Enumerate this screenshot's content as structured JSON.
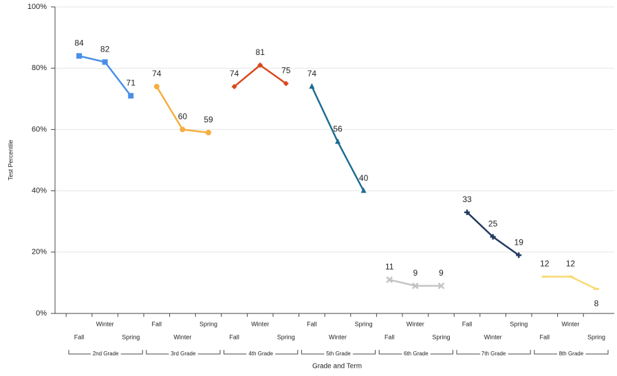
{
  "chart_data": {
    "type": "line",
    "y_label": "Test Percentile",
    "x_label": "Grade and Term",
    "ylim": [
      0,
      100
    ],
    "yticks": [
      {
        "value": 0,
        "label": "0%"
      },
      {
        "value": 20,
        "label": "20%"
      },
      {
        "value": 40,
        "label": "40%"
      },
      {
        "value": 60,
        "label": "60%"
      },
      {
        "value": 80,
        "label": "80%"
      },
      {
        "value": 100,
        "label": "100%"
      }
    ],
    "grid": true,
    "series": [
      {
        "name": "2nd Grade",
        "color": "#4a8fe7",
        "marker": "square",
        "categories": [
          "Fall",
          "Winter",
          "Spring"
        ],
        "values": [
          84,
          82,
          71
        ]
      },
      {
        "name": "3rd Grade",
        "color": "#f5ae3e",
        "marker": "circle",
        "categories": [
          "Fall",
          "Winter",
          "Spring"
        ],
        "values": [
          74,
          60,
          59
        ]
      },
      {
        "name": "4th Grade",
        "color": "#d9481c",
        "marker": "diamond",
        "categories": [
          "Fall",
          "Winter",
          "Spring"
        ],
        "values": [
          74,
          81,
          75
        ]
      },
      {
        "name": "5th Grade",
        "color": "#1d6c92",
        "marker": "triangle",
        "categories": [
          "Fall",
          "Winter",
          "Spring"
        ],
        "values": [
          74,
          56,
          40
        ]
      },
      {
        "name": "6th Grade",
        "color": "#c4c4c4",
        "marker": "cross",
        "categories": [
          "Fall",
          "Winter",
          "Spring"
        ],
        "values": [
          11,
          9,
          9
        ]
      },
      {
        "name": "7th Grade",
        "color": "#243a5e",
        "marker": "star",
        "categories": [
          "Fall",
          "Winter",
          "Spring"
        ],
        "values": [
          33,
          25,
          19
        ]
      },
      {
        "name": "8th Grade",
        "color": "#f8da72",
        "marker": "dash",
        "categories": [
          "Fall",
          "Winter",
          "Spring"
        ],
        "values": [
          12,
          12,
          8
        ]
      }
    ]
  }
}
